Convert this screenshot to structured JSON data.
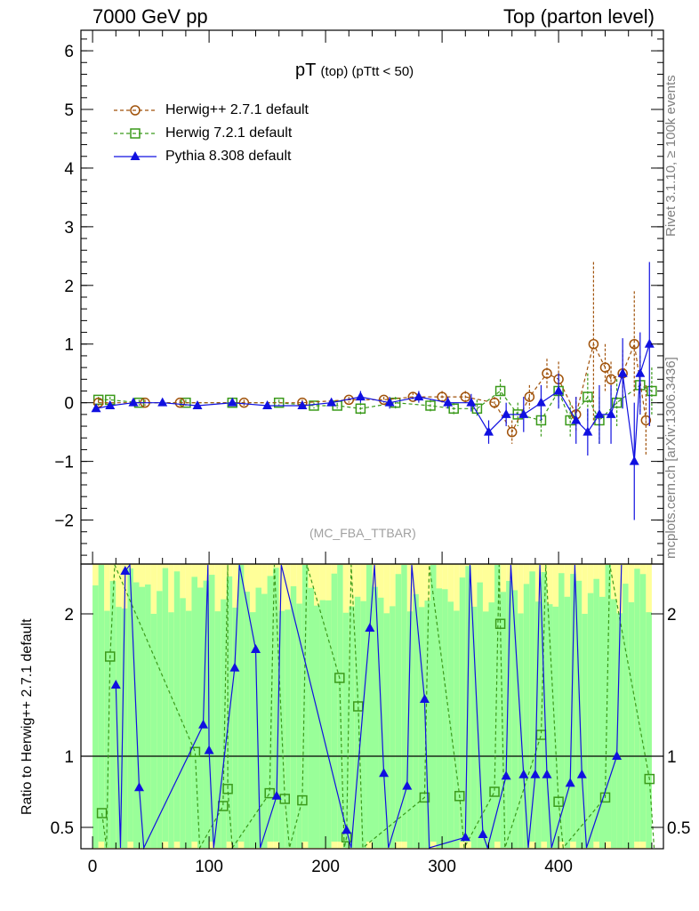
{
  "header": {
    "left": "7000 GeV pp",
    "right": "Top (parton level)"
  },
  "side_labels": {
    "rivet": "Rivet 3.1.10, ≥ 100k events",
    "mcplots": "mcplots.cern.ch [arXiv:1306.3436]"
  },
  "chart_data": [
    {
      "type": "line",
      "title": "pT",
      "title_sub": "(top) (pTtt < 50)",
      "analysis": "(MC_FBA_TTBAR)",
      "xlabel": "",
      "ylabel": "",
      "xlim": [
        -10,
        490
      ],
      "ylim": [
        -2.75,
        6.35
      ],
      "yticks": [
        -2,
        -1,
        0,
        1,
        2,
        3,
        4,
        5,
        6
      ],
      "yticklabels": [
        "−2",
        "−1",
        "0",
        "1",
        "2",
        "3",
        "4",
        "5",
        "6"
      ],
      "grid": false,
      "legend_position": "top-left",
      "series": [
        {
          "name": "Herwig++ 2.7.1 default",
          "color": "#a0520a",
          "marker": "open-circle",
          "line": "dashed",
          "x": [
            5,
            45,
            75,
            130,
            180,
            220,
            250,
            275,
            300,
            320,
            345,
            360,
            375,
            390,
            400,
            415,
            430,
            440,
            445,
            455,
            465,
            475
          ],
          "y": [
            0.0,
            0.0,
            0.0,
            0.0,
            0.0,
            0.05,
            0.05,
            0.1,
            0.1,
            0.1,
            0.0,
            -0.5,
            0.1,
            0.5,
            0.4,
            -0.2,
            1.0,
            0.6,
            0.4,
            0.5,
            1.0,
            -0.3
          ],
          "err": [
            0.05,
            0.05,
            0.05,
            0.05,
            0.05,
            0.05,
            0.05,
            0.08,
            0.1,
            0.1,
            0.1,
            0.2,
            0.2,
            0.25,
            0.3,
            0.3,
            1.4,
            0.4,
            0.3,
            0.4,
            0.9,
            0.6
          ]
        },
        {
          "name": "Herwig 7.2.1 default",
          "color": "#3a9a1a",
          "marker": "open-square",
          "line": "dashed",
          "x": [
            5,
            15,
            40,
            80,
            120,
            160,
            190,
            210,
            230,
            260,
            290,
            310,
            330,
            350,
            365,
            385,
            400,
            410,
            425,
            435,
            450,
            470,
            480
          ],
          "y": [
            0.05,
            0.05,
            0.0,
            0.0,
            0.0,
            0.0,
            -0.05,
            -0.05,
            -0.1,
            0.0,
            -0.05,
            -0.1,
            -0.1,
            0.2,
            -0.2,
            -0.3,
            0.2,
            -0.3,
            0.1,
            -0.3,
            0.0,
            0.3,
            0.2
          ],
          "err": [
            0.05,
            0.05,
            0.05,
            0.05,
            0.05,
            0.05,
            0.05,
            0.05,
            0.1,
            0.1,
            0.1,
            0.1,
            0.15,
            0.2,
            0.2,
            0.3,
            0.3,
            0.3,
            0.4,
            0.4,
            0.4,
            0.5,
            0.4
          ]
        },
        {
          "name": "Pythia 8.308 default",
          "color": "#1010e0",
          "marker": "filled-triangle",
          "line": "solid",
          "x": [
            3,
            15,
            35,
            60,
            90,
            120,
            150,
            180,
            205,
            230,
            255,
            280,
            305,
            325,
            340,
            355,
            370,
            385,
            400,
            415,
            425,
            435,
            445,
            455,
            465,
            470,
            478
          ],
          "y": [
            -0.1,
            -0.05,
            0.0,
            0.0,
            -0.05,
            0.0,
            -0.05,
            -0.05,
            0.0,
            0.1,
            0.0,
            0.1,
            0.0,
            0.0,
            -0.5,
            -0.2,
            -0.2,
            0.0,
            0.2,
            -0.3,
            -0.5,
            -0.2,
            -0.2,
            0.5,
            -1.0,
            0.5,
            1.0
          ],
          "err": [
            0.05,
            0.05,
            0.05,
            0.05,
            0.05,
            0.05,
            0.05,
            0.05,
            0.05,
            0.1,
            0.1,
            0.1,
            0.1,
            0.15,
            0.2,
            0.2,
            0.3,
            0.3,
            0.3,
            0.4,
            0.4,
            0.5,
            0.5,
            0.6,
            1.0,
            0.7,
            1.4
          ]
        }
      ]
    },
    {
      "type": "line",
      "ylabel": "Ratio to Herwig++ 2.7.1 default",
      "xlim": [
        -10,
        490
      ],
      "ylim": [
        0.35,
        2.35
      ],
      "yticks": [
        0.5,
        1,
        2
      ],
      "yticklabels": [
        "0.5",
        "1",
        "2"
      ],
      "xticks": [
        0,
        100,
        200,
        300,
        400
      ],
      "xticklabels": [
        "0",
        "100",
        "200",
        "300",
        "400"
      ],
      "reference_line": 1,
      "band_colors": {
        "inner": "#99ff99",
        "outer": "#ffff99"
      },
      "series": [
        {
          "name": "Herwig 7.2.1 default",
          "color": "#3a9a1a",
          "marker": "open-square",
          "line": "dashed",
          "x": [
            8,
            15,
            88,
            112,
            116,
            152,
            165,
            180,
            212,
            218,
            228,
            285,
            315,
            345,
            350,
            385,
            400,
            440,
            478
          ],
          "y": [
            0.6,
            1.7,
            1.03,
            0.65,
            0.77,
            0.74,
            0.7,
            0.69,
            1.55,
            0.43,
            1.35,
            0.71,
            0.72,
            0.75,
            1.93,
            1.15,
            0.68,
            0.71,
            0.84
          ]
        },
        {
          "name": "Pythia 8.308 default",
          "color": "#1010e0",
          "marker": "filled-triangle",
          "line": "solid",
          "x": [
            20,
            28,
            40,
            95,
            100,
            122,
            140,
            158,
            218,
            238,
            250,
            270,
            285,
            320,
            335,
            355,
            370,
            380,
            390,
            410,
            420,
            450
          ],
          "y": [
            1.5,
            2.3,
            0.78,
            1.22,
            1.04,
            1.62,
            1.75,
            0.72,
            0.48,
            1.9,
            0.88,
            0.79,
            1.4,
            0.43,
            0.45,
            0.86,
            0.87,
            0.87,
            0.87,
            0.81,
            0.87,
            1.0
          ]
        }
      ]
    }
  ]
}
